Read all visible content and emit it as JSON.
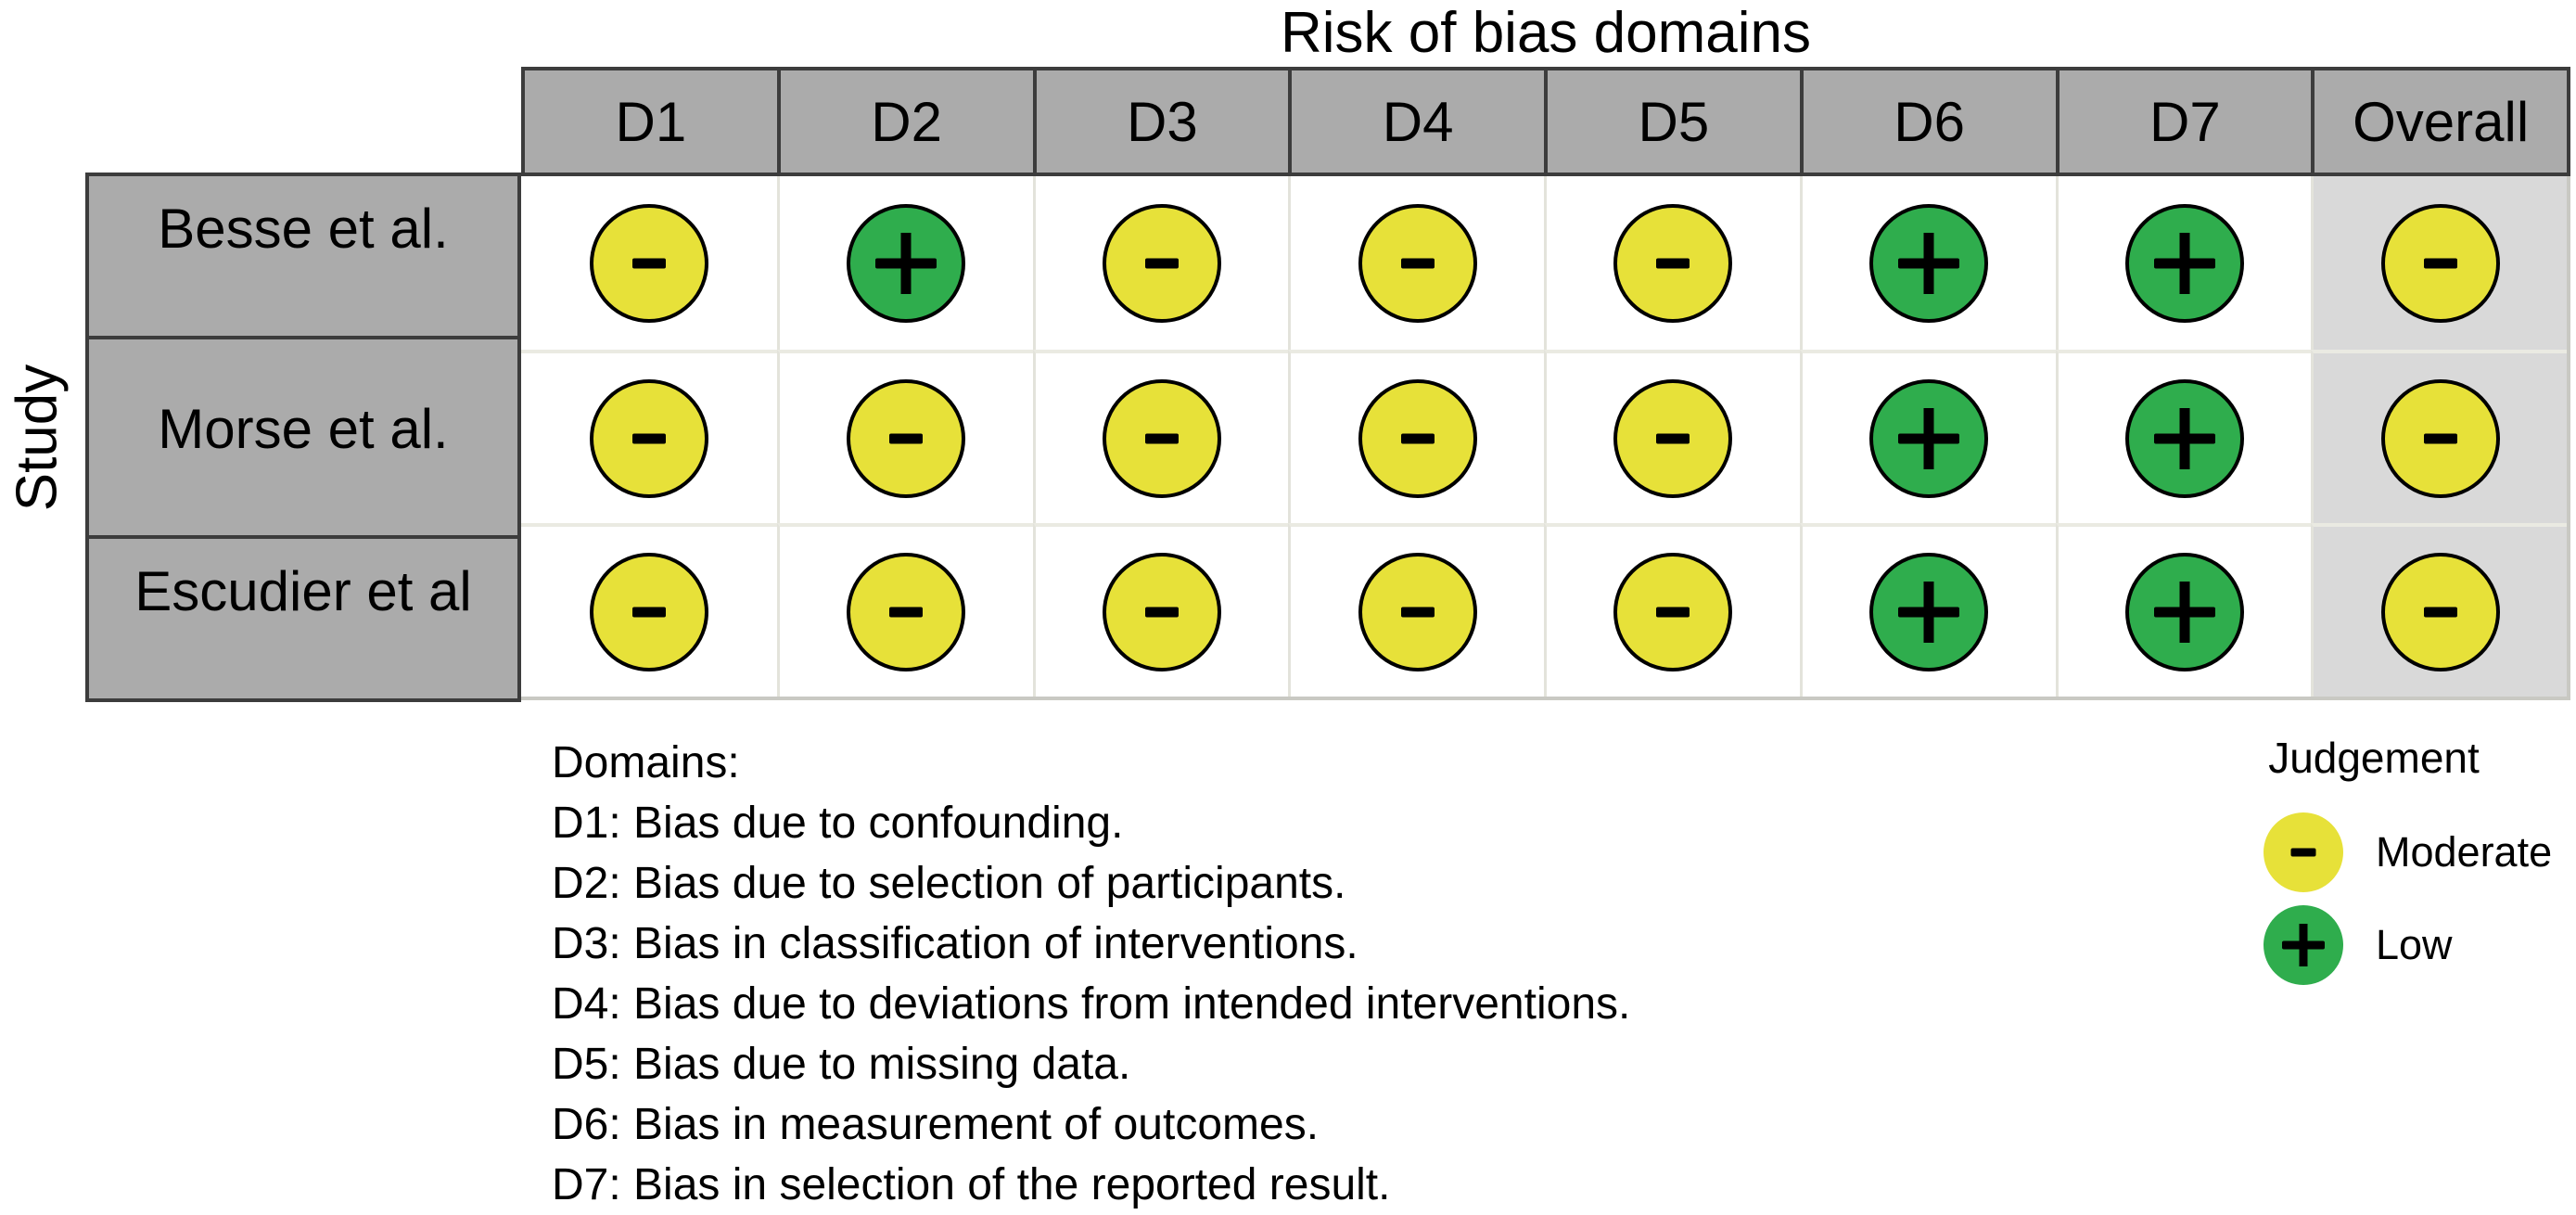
{
  "title": "Risk of bias domains",
  "y_axis_label": "Study",
  "colors": {
    "moderate": "#E7E139",
    "low": "#2FAD4D",
    "header_bg": "#ABABAB",
    "overall_bg": "#D9D9D9",
    "border_dark": "#3C3C3C",
    "grid_line": "#E3E3DB",
    "symbol": "#000000"
  },
  "domains_note": {
    "heading": "Domains:",
    "lines": [
      "D1: Bias due to confounding.",
      "D2: Bias due to selection of participants.",
      "D3: Bias in classification of interventions.",
      "D4: Bias due to deviations from intended interventions.",
      "D5: Bias due to missing data.",
      "D6: Bias in measurement of outcomes.",
      "D7: Bias in selection of the reported result."
    ]
  },
  "legend": {
    "title": "Judgement",
    "items": [
      {
        "label": "Moderate",
        "judgement": "moderate",
        "symbol": "-"
      },
      {
        "label": "Low",
        "judgement": "low",
        "symbol": "+"
      }
    ]
  },
  "chart_data": {
    "type": "table",
    "title": "Risk of bias domains",
    "x_axis_label": "Risk of bias domains",
    "y_axis_label": "Study",
    "columns": [
      "D1",
      "D2",
      "D3",
      "D4",
      "D5",
      "D6",
      "D7",
      "Overall"
    ],
    "rows": [
      {
        "study": "Besse et al.",
        "judgements": [
          "moderate",
          "low",
          "moderate",
          "moderate",
          "moderate",
          "low",
          "low",
          "moderate"
        ]
      },
      {
        "study": "Morse et al.",
        "judgements": [
          "moderate",
          "moderate",
          "moderate",
          "moderate",
          "moderate",
          "low",
          "low",
          "moderate"
        ]
      },
      {
        "study": "Escudier et al",
        "judgements": [
          "moderate",
          "moderate",
          "moderate",
          "moderate",
          "moderate",
          "low",
          "low",
          "moderate"
        ]
      }
    ],
    "judgement_symbols": {
      "moderate": "-",
      "low": "+"
    },
    "judgement_colors": {
      "moderate": "#E7E139",
      "low": "#2FAD4D"
    },
    "legend_position": "bottom-right"
  }
}
